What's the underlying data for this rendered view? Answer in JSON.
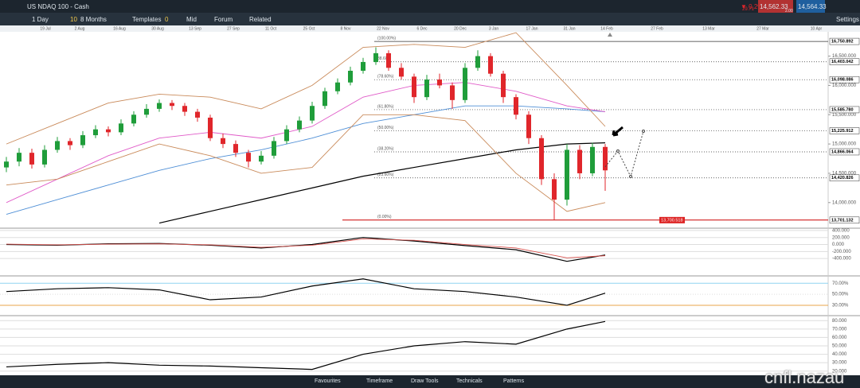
{
  "header": {
    "instrument": "US NDAQ 100 - Cash",
    "change_pct": "▼ 0.2%",
    "change": "29.71",
    "sell": "14,562.33",
    "buy": "14,564.33",
    "spread": "2.00"
  },
  "toolbar": {
    "interval": "1 Day",
    "range_icon": "10",
    "range": "8 Months",
    "templates": "Templates",
    "mid_icon": "0",
    "mid": "Mid",
    "forum": "Forum",
    "related": "Related",
    "settings": "Settings"
  },
  "dates": [
    "19 Jul",
    "2 Aug",
    "16 Aug",
    "30 Aug",
    "13 Sep",
    "27 Sep",
    "11 Oct",
    "25 Oct",
    "8 Nov",
    "22 Nov",
    "6 Dec",
    "20 Dec",
    "3 Jan",
    "17 Jan",
    "31 Jan",
    "14 Feb",
    "27 Feb",
    "13 Mar",
    "27 Mar",
    "10 Apr"
  ],
  "price_chart": {
    "ylim": [
      13590,
      16915
    ],
    "yticks": [
      {
        "value": 16500,
        "label": "16,500.000"
      },
      {
        "value": 16000,
        "label": "16,000.000"
      },
      {
        "value": 15500,
        "label": "15,500.000"
      },
      {
        "value": 15000,
        "label": "15,000.000"
      },
      {
        "value": 14500,
        "label": "14,500.000"
      },
      {
        "value": 14000,
        "label": "14,000.000"
      }
    ],
    "levels": [
      {
        "value": 16750.892,
        "label": "16,750.892",
        "fib": "(100.00%)"
      },
      {
        "value": 16403.042,
        "label": "16,403.042",
        "fib": "88.60%"
      },
      {
        "value": 16098.086,
        "label": "16,098.086",
        "fib": "(78.60%)"
      },
      {
        "value": 15585.78,
        "label": "15,585.780",
        "fib": "(61.80%)"
      },
      {
        "value": 15225.912,
        "label": "15,225.912",
        "fib": "(50.00%)"
      },
      {
        "value": 14866.064,
        "label": "14,866.064",
        "fib": "(38.20%)"
      },
      {
        "value": 14420.826,
        "label": "14,420.826",
        "fib": "(23.60%)"
      },
      {
        "value": 13701.132,
        "label": "13,701.132",
        "fib": "(0.00%)"
      }
    ],
    "low_marker": {
      "value": 13700.518,
      "label": "13,700.518"
    },
    "candles": [
      [
        14600,
        14780,
        14520,
        14700
      ],
      [
        14700,
        14930,
        14620,
        14850
      ],
      [
        14850,
        14920,
        14580,
        14650
      ],
      [
        14650,
        14980,
        14600,
        14900
      ],
      [
        14900,
        15120,
        14850,
        15050
      ],
      [
        15050,
        15100,
        14900,
        14980
      ],
      [
        14980,
        15220,
        14930,
        15150
      ],
      [
        15150,
        15320,
        15100,
        15250
      ],
      [
        15250,
        15300,
        15130,
        15200
      ],
      [
        15200,
        15420,
        15150,
        15350
      ],
      [
        15350,
        15560,
        15300,
        15500
      ],
      [
        15500,
        15680,
        15450,
        15600
      ],
      [
        15600,
        15760,
        15550,
        15700
      ],
      [
        15700,
        15750,
        15580,
        15650
      ],
      [
        15650,
        15700,
        15480,
        15550
      ],
      [
        15550,
        15600,
        15380,
        15450
      ],
      [
        15450,
        15500,
        15050,
        15100
      ],
      [
        15100,
        15180,
        14930,
        15000
      ],
      [
        15000,
        15060,
        14780,
        14850
      ],
      [
        14850,
        14900,
        14600,
        14700
      ],
      [
        14700,
        14880,
        14650,
        14800
      ],
      [
        14800,
        15120,
        14750,
        15050
      ],
      [
        15050,
        15320,
        15000,
        15250
      ],
      [
        15250,
        15470,
        15200,
        15400
      ],
      [
        15400,
        15720,
        15350,
        15650
      ],
      [
        15650,
        15960,
        15600,
        15900
      ],
      [
        15900,
        16120,
        15850,
        16050
      ],
      [
        16050,
        16320,
        16000,
        16250
      ],
      [
        16250,
        16470,
        16200,
        16400
      ],
      [
        16400,
        16650,
        16350,
        16550
      ],
      [
        16550,
        16600,
        16250,
        16300
      ],
      [
        16300,
        16380,
        16100,
        16150
      ],
      [
        16150,
        16200,
        15700,
        15800
      ],
      [
        15800,
        16180,
        15750,
        16100
      ],
      [
        16100,
        16200,
        15950,
        16000
      ],
      [
        16000,
        16050,
        15600,
        15750
      ],
      [
        15750,
        16380,
        15700,
        16300
      ],
      [
        16300,
        16600,
        16250,
        16500
      ],
      [
        16500,
        16550,
        16150,
        16200
      ],
      [
        16200,
        16250,
        15700,
        15800
      ],
      [
        15800,
        15850,
        15420,
        15500
      ],
      [
        15500,
        15560,
        15000,
        15100
      ],
      [
        15100,
        15150,
        14300,
        14400
      ],
      [
        14400,
        14500,
        13701,
        14050
      ],
      [
        14050,
        15000,
        13950,
        14900
      ],
      [
        14900,
        14980,
        14400,
        14500
      ],
      [
        14500,
        15020,
        14450,
        14950
      ],
      [
        14950,
        15000,
        14200,
        14550
      ]
    ],
    "series": [
      {
        "color": "#000000",
        "values": [
          null,
          null,
          null,
          13650,
          13850,
          14050,
          14250,
          14450,
          14600,
          14750,
          14900,
          15000,
          15020
        ]
      },
      {
        "color": "#4f8fd6",
        "values": [
          13800,
          14050,
          14300,
          14550,
          14750,
          14900,
          15100,
          15350,
          15500,
          15650,
          15650,
          15600,
          15550
        ]
      },
      {
        "color": "#e05ac8",
        "values": [
          14000,
          14400,
          14800,
          15100,
          15200,
          15100,
          15300,
          15800,
          16000,
          16050,
          15900,
          15650,
          15550
        ]
      },
      {
        "color": "#c98a5a",
        "values": [
          15000,
          15350,
          15700,
          15850,
          15800,
          15600,
          16000,
          16650,
          16700,
          16650,
          16900,
          16000,
          15300
        ]
      },
      {
        "color": "#c98a5a",
        "values": [
          14300,
          14400,
          14700,
          15000,
          14800,
          14500,
          14600,
          15500,
          15500,
          15400,
          14500,
          13850,
          14000
        ]
      }
    ],
    "projection": {
      "index": [
        47,
        48,
        49,
        50
      ],
      "values": [
        14610,
        14880,
        14445,
        15218
      ]
    }
  },
  "sample_index": [
    0,
    4,
    8,
    12,
    16,
    20,
    24,
    28,
    32,
    36,
    40,
    44,
    47
  ],
  "macd": {
    "ylim": [
      -850,
      420
    ],
    "yticks": [
      {
        "value": 400,
        "label": "400.000"
      },
      {
        "value": 200,
        "label": "200.000"
      },
      {
        "value": 0,
        "label": "0.000"
      },
      {
        "value": -200,
        "label": "-200.000"
      },
      {
        "value": -400,
        "label": "-400.000"
      }
    ],
    "series": [
      {
        "color": "#000000",
        "values": [
          0,
          -20,
          20,
          30,
          -20,
          -100,
          0,
          200,
          100,
          -30,
          -150,
          -480,
          -300
        ]
      },
      {
        "color": "#d9534f",
        "values": [
          10,
          -10,
          10,
          20,
          -10,
          -80,
          -20,
          160,
          120,
          0,
          -100,
          -380,
          -320
        ]
      }
    ]
  },
  "rsi": {
    "ylim": [
      14,
      82
    ],
    "yticks": [
      {
        "value": 70,
        "label": "70.00%"
      },
      {
        "value": 50,
        "label": "50.00%"
      },
      {
        "value": 30,
        "label": "30.00%"
      }
    ],
    "series": [
      {
        "color": "#000000",
        "values": [
          55,
          60,
          62,
          58,
          40,
          45,
          65,
          78,
          60,
          55,
          45,
          30,
          52
        ]
      }
    ]
  },
  "lower": {
    "ylim": [
      15,
      85
    ],
    "yticks": [
      {
        "value": 80,
        "label": "80.000"
      },
      {
        "value": 70,
        "label": "70.000"
      },
      {
        "value": 60,
        "label": "60.000"
      },
      {
        "value": 50,
        "label": "50.000"
      },
      {
        "value": 40,
        "label": "40.000"
      },
      {
        "value": 30,
        "label": "30.000"
      },
      {
        "value": 20,
        "label": "20.000"
      }
    ],
    "series": [
      {
        "color": "#000000",
        "values": [
          25,
          28,
          30,
          27,
          26,
          24,
          22,
          40,
          50,
          55,
          52,
          70,
          79
        ]
      }
    ]
  },
  "bottom_bar": {
    "items": [
      "Favourites",
      "Timeframe",
      "Draw Tools",
      "Technicals",
      "Patterns"
    ]
  },
  "watermark": "cnfl.nazau"
}
